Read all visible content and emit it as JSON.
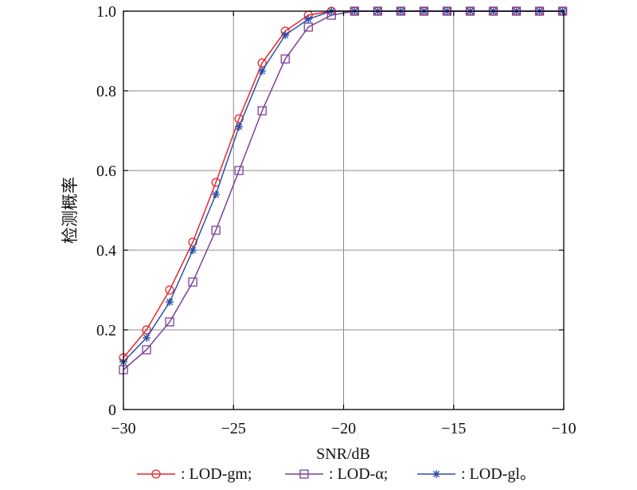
{
  "chart_data": {
    "type": "line",
    "title": "",
    "xlabel": "SNR/dB",
    "ylabel": "检测概率",
    "xlim": [
      -30,
      -10
    ],
    "ylim": [
      0,
      1.0
    ],
    "grid": true,
    "legend_position": "bottom",
    "xticks": [
      -30,
      -25,
      -20,
      -15,
      -10
    ],
    "xtick_labels": [
      "−30",
      "−25",
      "−20",
      "−15",
      "−10"
    ],
    "yticks": [
      0,
      0.2,
      0.4,
      0.6,
      0.8,
      1.0
    ],
    "ytick_labels": [
      "0",
      "0.2",
      "0.4",
      "0.6",
      "0.8",
      "1.0"
    ],
    "x": [
      -30,
      -28.95,
      -27.9,
      -26.85,
      -25.8,
      -24.75,
      -23.7,
      -22.65,
      -21.6,
      -20.55,
      -19.5,
      -18.45,
      -17.4,
      -16.35,
      -15.3,
      -14.25,
      -13.2,
      -12.15,
      -11.1,
      -10.05
    ],
    "series": [
      {
        "name": "LOD-gm",
        "color": "#e8262a",
        "marker": "circle",
        "values": [
          0.13,
          0.2,
          0.3,
          0.42,
          0.57,
          0.73,
          0.87,
          0.95,
          0.99,
          1.0,
          1.0,
          1.0,
          1.0,
          1.0,
          1.0,
          1.0,
          1.0,
          1.0,
          1.0,
          1.0
        ]
      },
      {
        "name": "LOD-α",
        "color": "#7b3f98",
        "marker": "square",
        "values": [
          0.1,
          0.15,
          0.22,
          0.32,
          0.45,
          0.6,
          0.75,
          0.88,
          0.96,
          0.99,
          1.0,
          1.0,
          1.0,
          1.0,
          1.0,
          1.0,
          1.0,
          1.0,
          1.0,
          1.0
        ]
      },
      {
        "name": "LOD-gl",
        "color": "#2e4fa8",
        "marker": "asterisk",
        "values": [
          0.12,
          0.18,
          0.27,
          0.4,
          0.54,
          0.71,
          0.85,
          0.94,
          0.98,
          1.0,
          1.0,
          1.0,
          1.0,
          1.0,
          1.0,
          1.0,
          1.0,
          1.0,
          1.0,
          1.0
        ]
      }
    ],
    "legend_entries": [
      ": LOD-gm;",
      ": LOD-α;",
      ": LOD-gl。"
    ]
  }
}
